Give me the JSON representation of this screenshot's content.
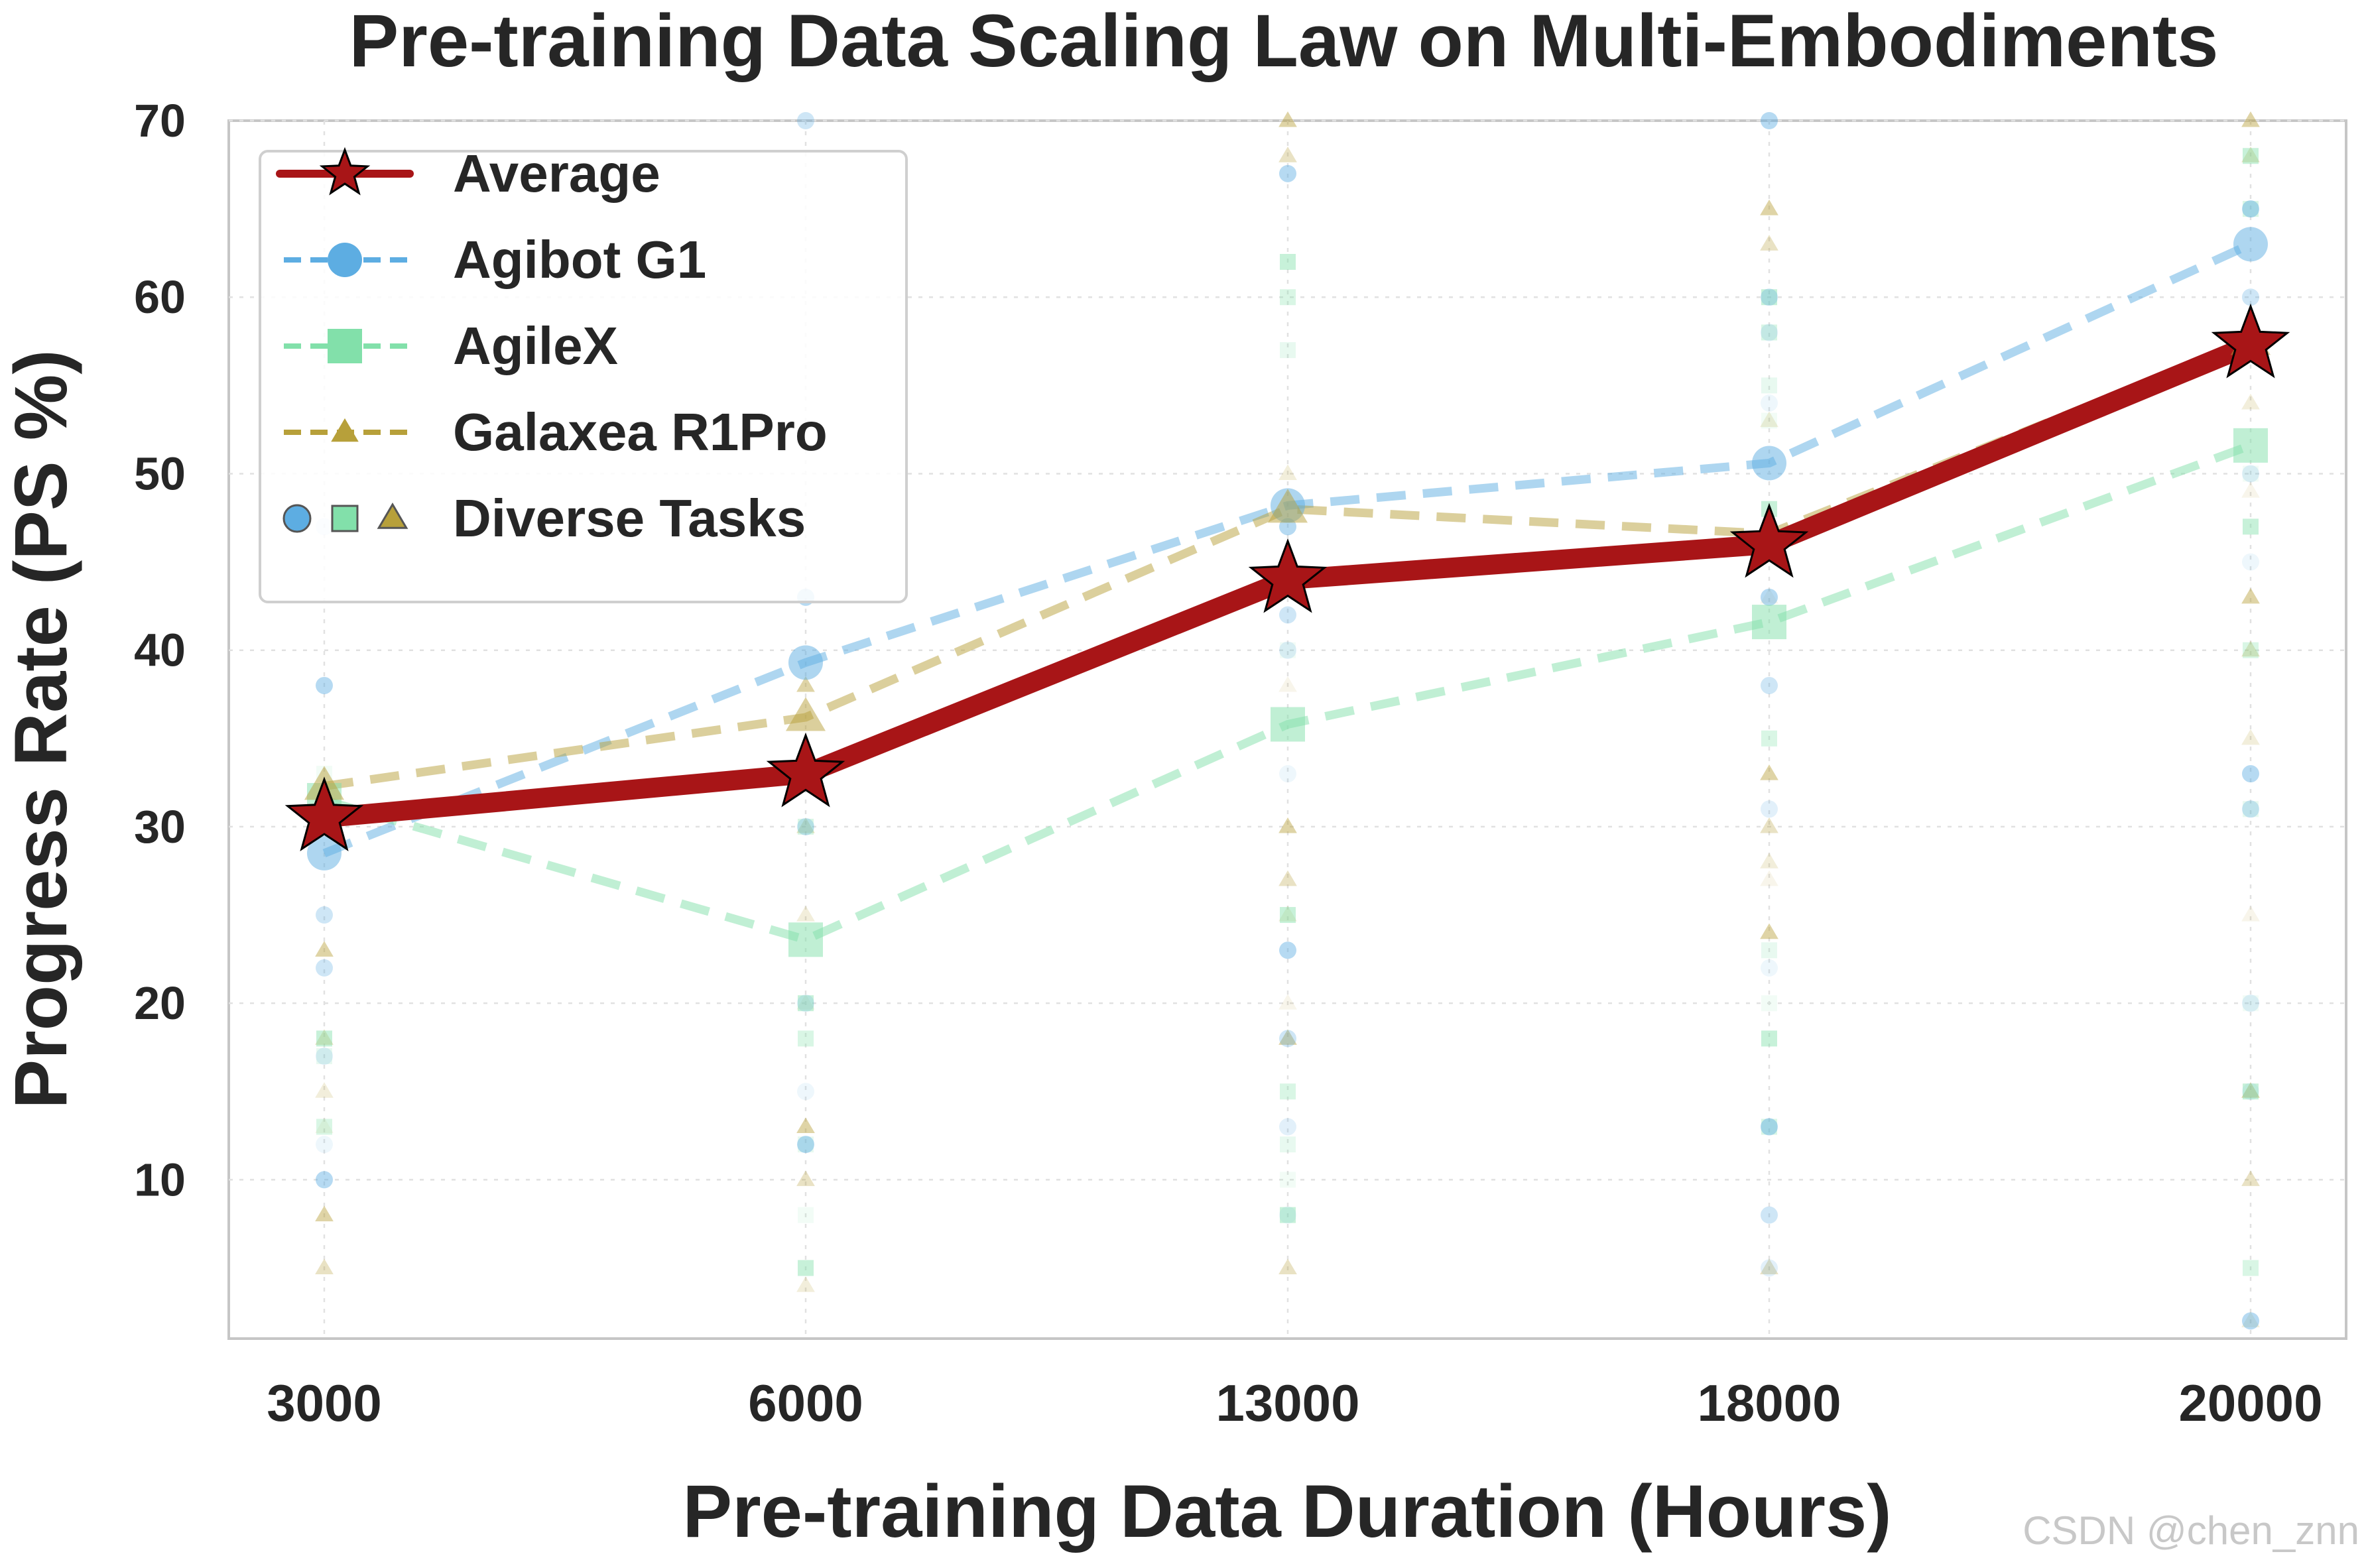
{
  "chart_data": {
    "type": "line",
    "title": "Pre-training Data Scaling Law on Multi-Embodiments",
    "xlabel": "Pre-training Data Duration (Hours)",
    "ylabel": "Progress Rate (PS %)",
    "categories": [
      "3000",
      "6000",
      "13000",
      "18000",
      "20000"
    ],
    "ylim": [
      1,
      70
    ],
    "yticks": [
      10,
      20,
      30,
      40,
      50,
      60,
      70
    ],
    "grid": true,
    "legend_position": "top-left",
    "series": [
      {
        "name": "Average",
        "values": [
          30.5,
          33.0,
          44.0,
          46.0,
          57.3
        ],
        "color": "#a81517",
        "marker": "star",
        "style": "solid"
      },
      {
        "name": "Agibot G1",
        "values": [
          28.5,
          39.3,
          48.2,
          50.6,
          63.0
        ],
        "color": "#5dade2",
        "marker": "circle",
        "style": "dashed"
      },
      {
        "name": "AgileX",
        "values": [
          31.5,
          23.6,
          35.8,
          41.6,
          51.6
        ],
        "color": "#82e0aa",
        "marker": "square",
        "style": "dashed"
      },
      {
        "name": "Galaxea R1Pro",
        "values": [
          32.3,
          36.2,
          48.0,
          46.6,
          57.5
        ],
        "color": "#b7a03a",
        "marker": "triangle",
        "style": "dashed"
      }
    ],
    "task_series": {
      "legend_label": "Diverse Tasks",
      "agibot": [
        [
          38,
          25,
          17,
          12,
          10,
          22,
          47
        ],
        [
          43,
          30,
          20,
          15,
          12,
          70
        ],
        [
          67,
          42,
          40,
          33,
          23,
          18,
          13,
          8,
          47
        ],
        [
          70,
          60,
          58,
          54,
          43,
          38,
          31,
          22,
          13,
          8,
          5
        ],
        [
          65,
          60,
          50,
          45,
          33,
          31,
          20,
          15,
          2
        ]
      ],
      "agilex": [
        [
          18,
          13,
          17,
          33
        ],
        [
          20,
          18,
          12,
          8,
          5,
          30
        ],
        [
          62,
          60,
          57,
          40,
          25,
          15,
          12,
          10,
          8
        ],
        [
          60,
          58,
          55,
          53,
          48,
          35,
          23,
          20,
          18,
          13
        ],
        [
          68,
          65,
          58,
          50,
          47,
          40,
          31,
          20,
          15,
          5
        ]
      ],
      "galaxea": [
        [
          23,
          18,
          15,
          13,
          8,
          5
        ],
        [
          38,
          30,
          25,
          20,
          13,
          10,
          4
        ],
        [
          70,
          68,
          50,
          38,
          30,
          27,
          25,
          20,
          18,
          5
        ],
        [
          65,
          63,
          53,
          43,
          33,
          30,
          28,
          27,
          24,
          5
        ],
        [
          70,
          68,
          54,
          49,
          43,
          40,
          35,
          25,
          15,
          10,
          2
        ]
      ]
    }
  },
  "watermark": "CSDN @chen_znn"
}
